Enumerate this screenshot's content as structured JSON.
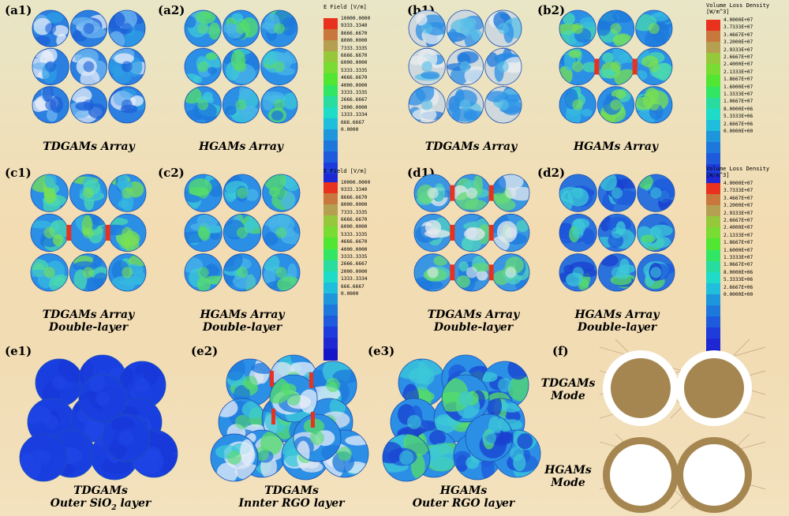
{
  "panels": {
    "a1": {
      "label": "(a1)",
      "caption": "TDGAMs Array"
    },
    "a2": {
      "label": "(a2)",
      "caption": "HGAMs Array"
    },
    "b1": {
      "label": "(b1)",
      "caption": "TDGAMs Array"
    },
    "b2": {
      "label": "(b2)",
      "caption": "HGAMs Array"
    },
    "c1": {
      "label": "(c1)",
      "caption_line1": "TDGAMs Array",
      "caption_line2": "Double-layer"
    },
    "c2": {
      "label": "(c2)",
      "caption_line1": "HGAMs Array",
      "caption_line2": "Double-layer"
    },
    "d1": {
      "label": "(d1)",
      "caption_line1": "TDGAMs Array",
      "caption_line2": "Double-layer"
    },
    "d2": {
      "label": "(d2)",
      "caption_line1": "HGAMs Array",
      "caption_line2": "Double-layer"
    },
    "e1": {
      "label": "(e1)",
      "caption_line1": "TDGAMs",
      "caption_line2": "Outer SiO",
      "caption_sub": "2",
      "caption_tail": " layer"
    },
    "e2": {
      "label": "(e2)",
      "caption_line1": "TDGAMs",
      "caption_line2": "Innter RGO layer"
    },
    "e3": {
      "label": "(e3)",
      "caption_line1": "HGAMs",
      "caption_line2": "Outer RGO layer"
    },
    "f": {
      "label": "(f)",
      "mode1_line1": "TDGAMs",
      "mode1_line2": "Mode",
      "mode2_line1": "HGAMs",
      "mode2_line2": "Mode"
    }
  },
  "legend_efield": {
    "title": "E Field [V/m]",
    "values": [
      "10000.0000",
      "9333.3340",
      "8666.6670",
      "8000.0000",
      "7333.3335",
      "6666.6670",
      "6000.0000",
      "5333.3335",
      "4666.6670",
      "4000.0000",
      "3333.3335",
      "2666.6667",
      "2000.0000",
      "1333.3334",
      "666.6667",
      "0.0000"
    ]
  },
  "legend_vld": {
    "title_line1": "Volume Loss Density",
    "title_line2": "[W/m^3]",
    "values": [
      "4.0000E+07",
      "3.7333E+07",
      "3.4667E+07",
      "3.2000E+07",
      "2.9333E+07",
      "2.6667E+07",
      "2.4000E+07",
      "2.1333E+07",
      "1.8667E+07",
      "1.6000E+07",
      "1.3333E+07",
      "1.0667E+07",
      "8.0000E+06",
      "5.3333E+06",
      "2.6667E+06",
      "0.0000E+00"
    ]
  },
  "colorscale": [
    "#e8321e",
    "#c8783c",
    "#b4a050",
    "#96c83c",
    "#78dc32",
    "#50e632",
    "#32e664",
    "#28dca0",
    "#1edcc8",
    "#1ebedc",
    "#1e96dc",
    "#1e78dc",
    "#1e5adc",
    "#1e3cdc",
    "#1e28d2",
    "#1414c8"
  ],
  "colors": {
    "sphere_tan": "#a68650",
    "sphere_ring_white": "#ffffff",
    "text": "#000000"
  }
}
